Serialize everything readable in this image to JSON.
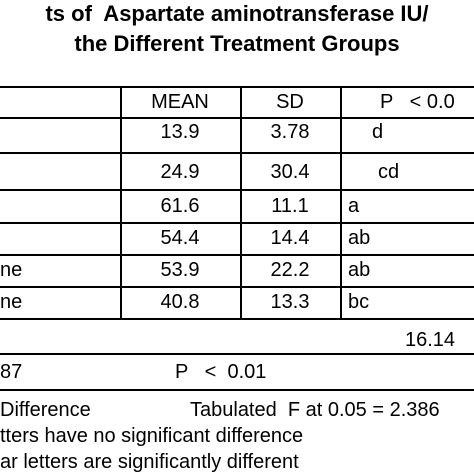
{
  "title": [
    "ts of  Aspartate aminotransferase IU/",
    "the Different Treatment Groups"
  ],
  "table": {
    "header": [
      "MEAN",
      "SD",
      "P   < 0.0"
    ],
    "rows": [
      {
        "mean": "13.9",
        "sd": "3.78",
        "group": "d"
      },
      {
        "mean": "24.9",
        "sd": "30.4",
        "group": "cd"
      },
      {
        "mean": "61.6",
        "sd": "11.1",
        "group": "a"
      },
      {
        "mean": "54.4",
        "sd": "14.4",
        "group": "ab"
      },
      {
        "label": "ne",
        "mean": "53.9",
        "sd": "22.2",
        "group": "ab"
      },
      {
        "label": "ne",
        "mean": "40.8",
        "sd": "13.3",
        "group": "bc"
      }
    ]
  },
  "summary": {
    "value": "16.14",
    "left": "87",
    "p": "P   <  0.01"
  },
  "notes": [
    "Difference",
    "Tabulated  F at 0.05 = 2.386",
    "tters have no significant difference",
    "ar letters are significantly different"
  ]
}
